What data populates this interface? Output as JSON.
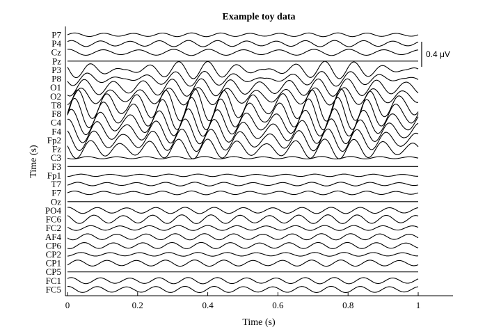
{
  "chart_data": {
    "type": "line",
    "title": "Example toy data",
    "xlabel": "Time (s)",
    "ylabel": "Time (s)",
    "xlim": [
      0,
      1
    ],
    "x_ticks": [
      "0",
      "0.2",
      "0.4",
      "0.6",
      "0.8",
      "1"
    ],
    "x_tick_values": [
      0,
      0.2,
      0.4,
      0.6,
      0.8,
      1
    ],
    "scale_bar": {
      "value": 0.4,
      "label": "0.4 μV"
    },
    "color": "#000000",
    "series": [
      {
        "name": "P7",
        "amplitude": 0.03,
        "cycles": 12,
        "modulation": 0.3
      },
      {
        "name": "P4",
        "amplitude": 0.05,
        "cycles": 12,
        "modulation": 0.3
      },
      {
        "name": "Cz",
        "amplitude": 0.05,
        "cycles": 10,
        "modulation": 0.3
      },
      {
        "name": "Pz",
        "amplitude": 0.0,
        "cycles": 10,
        "modulation": 0.0
      },
      {
        "name": "P3",
        "amplitude": 0.14,
        "cycles": 12,
        "modulation": 0.95
      },
      {
        "name": "P8",
        "amplitude": 0.12,
        "cycles": 12,
        "modulation": 0.95
      },
      {
        "name": "O1",
        "amplitude": 0.14,
        "cycles": 12,
        "modulation": 0.4
      },
      {
        "name": "O2",
        "amplitude": 0.14,
        "cycles": 12,
        "modulation": 0.4
      },
      {
        "name": "T8",
        "amplitude": 0.26,
        "cycles": 12,
        "modulation": 0.5
      },
      {
        "name": "F8",
        "amplitude": 0.26,
        "cycles": 12,
        "modulation": 0.5
      },
      {
        "name": "C4",
        "amplitude": 0.22,
        "cycles": 12,
        "modulation": 0.5
      },
      {
        "name": "F4",
        "amplitude": 0.2,
        "cycles": 12,
        "modulation": 0.5
      },
      {
        "name": "Fp2",
        "amplitude": 0.18,
        "cycles": 12,
        "modulation": 0.5
      },
      {
        "name": "Fz",
        "amplitude": 0.16,
        "cycles": 12,
        "modulation": 0.5
      },
      {
        "name": "C3",
        "amplitude": 0.02,
        "cycles": 12,
        "modulation": 0.3
      },
      {
        "name": "F3",
        "amplitude": 0.0,
        "cycles": 12,
        "modulation": 0.0
      },
      {
        "name": "Fp1",
        "amplitude": 0.02,
        "cycles": 12,
        "modulation": 0.3
      },
      {
        "name": "T7",
        "amplitude": 0.03,
        "cycles": 12,
        "modulation": 0.3
      },
      {
        "name": "F7",
        "amplitude": 0.03,
        "cycles": 12,
        "modulation": 0.3
      },
      {
        "name": "Oz",
        "amplitude": 0.0,
        "cycles": 12,
        "modulation": 0.0
      },
      {
        "name": "PO4",
        "amplitude": 0.05,
        "cycles": 12,
        "modulation": 0.2
      },
      {
        "name": "FC6",
        "amplitude": 0.07,
        "cycles": 12,
        "modulation": 0.2
      },
      {
        "name": "FC2",
        "amplitude": 0.04,
        "cycles": 12,
        "modulation": 0.2
      },
      {
        "name": "AF4",
        "amplitude": 0.05,
        "cycles": 12,
        "modulation": 0.2
      },
      {
        "name": "CP6",
        "amplitude": 0.05,
        "cycles": 12,
        "modulation": 0.2
      },
      {
        "name": "CP2",
        "amplitude": 0.03,
        "cycles": 12,
        "modulation": 0.2
      },
      {
        "name": "CP1",
        "amplitude": 0.05,
        "cycles": 12,
        "modulation": 0.2
      },
      {
        "name": "CP5",
        "amplitude": 0.0,
        "cycles": 12,
        "modulation": 0.0
      },
      {
        "name": "FC1",
        "amplitude": 0.05,
        "cycles": 12,
        "modulation": 0.2
      },
      {
        "name": "FC5",
        "amplitude": 0.05,
        "cycles": 12,
        "modulation": 0.2
      }
    ]
  }
}
